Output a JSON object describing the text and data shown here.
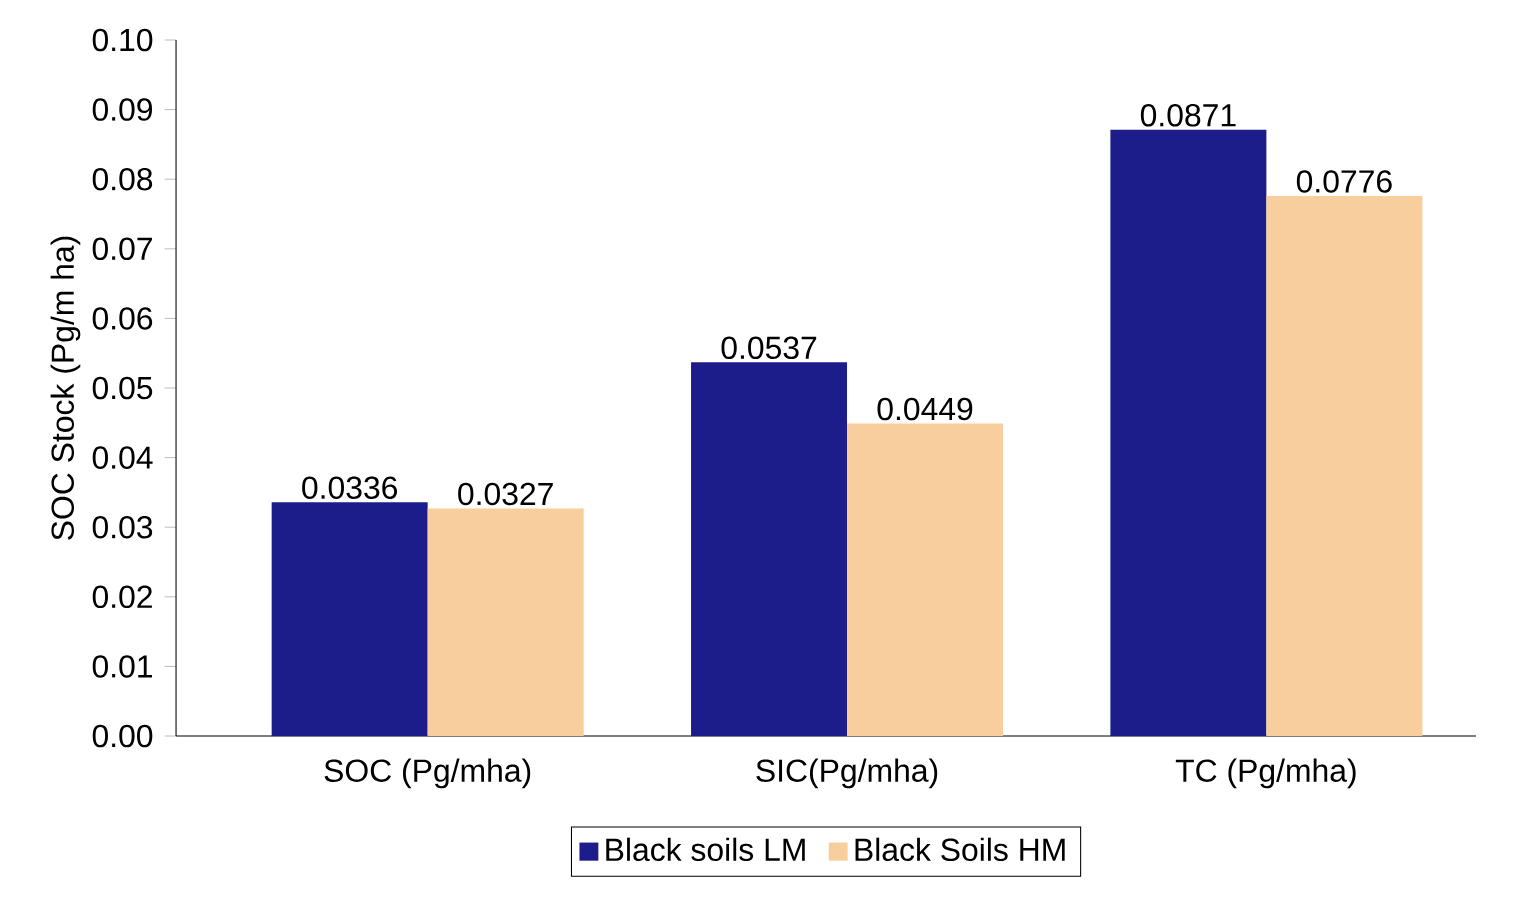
{
  "chart_data": {
    "type": "bar",
    "ylabel": "SOC Stock (Pg/m ha)",
    "categories": [
      "SOC (Pg/mha)",
      "SIC(Pg/mha)",
      "TC (Pg/mha)"
    ],
    "series": [
      {
        "name": "Black soils LM",
        "color": "#1c1c8a",
        "values": [
          0.0336,
          0.0537,
          0.0871
        ]
      },
      {
        "name": "Black Soils HM",
        "color": "#f8cf9c",
        "values": [
          0.0327,
          0.0449,
          0.0776
        ]
      }
    ],
    "ylim": [
      0,
      0.1
    ],
    "yticks": [
      {
        "value": 0,
        "label": "0.00"
      },
      0.01,
      0.02,
      0.03,
      0.04,
      0.05,
      0.06,
      0.07,
      0.08,
      0.09,
      {
        "value": 0.1,
        "label": "0.10"
      }
    ],
    "data_labels": true,
    "grid": false,
    "legend": "bottom"
  }
}
